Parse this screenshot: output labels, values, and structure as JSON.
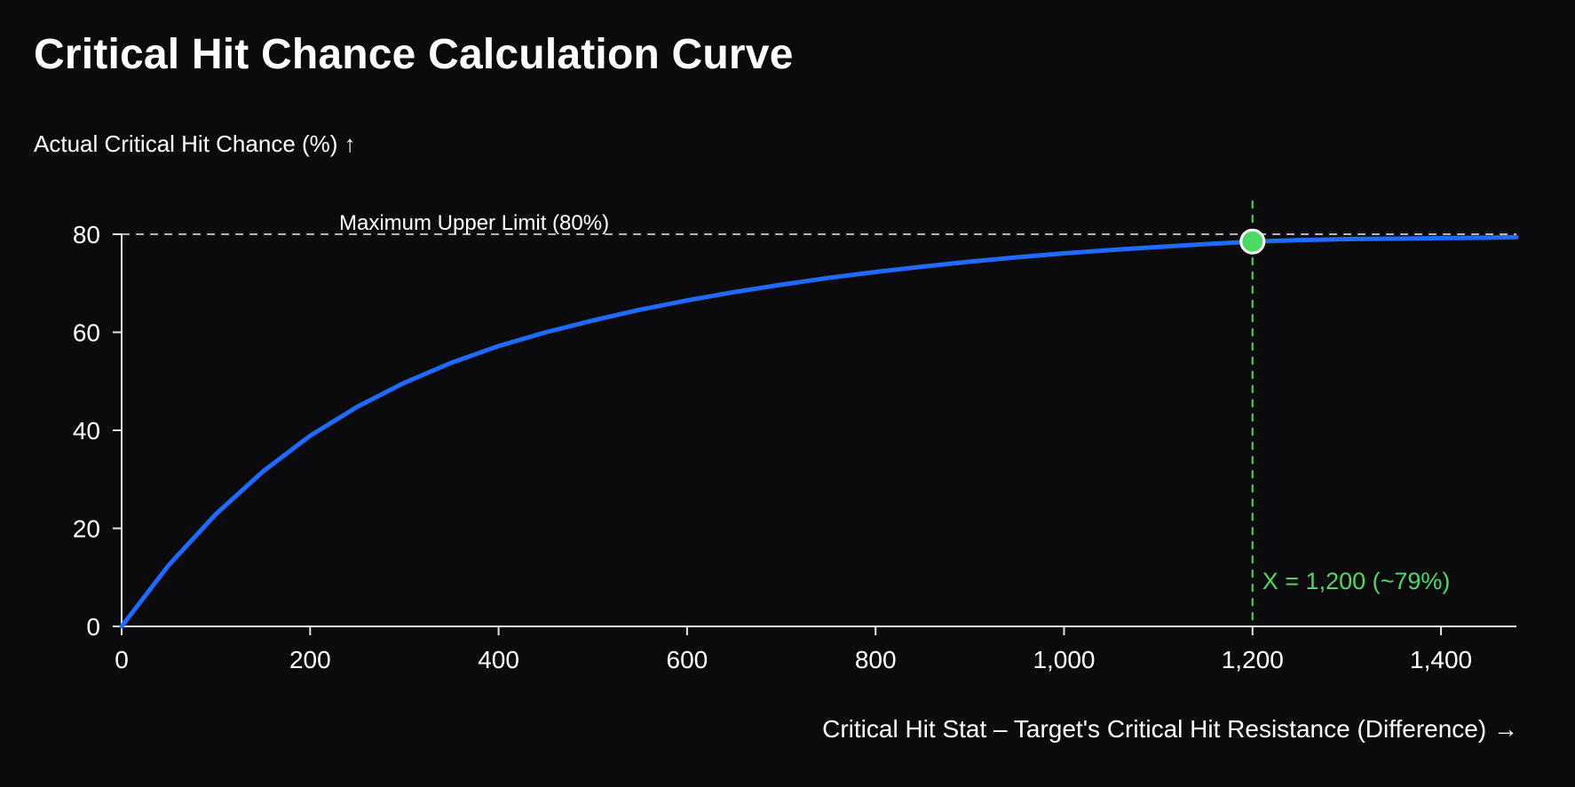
{
  "chart_data": {
    "type": "line",
    "title": "Critical Hit Chance Calculation Curve",
    "ylabel": "Actual Critical Hit Chance (%) ↑",
    "xlabel": "Critical Hit Stat – Target's Critical Hit Resistance (Difference) →",
    "xlim": [
      0,
      1480
    ],
    "ylim": [
      0,
      80
    ],
    "x_ticks": [
      0,
      200,
      400,
      600,
      800,
      1000,
      1200,
      1400
    ],
    "x_tick_labels": [
      "0",
      "200",
      "400",
      "600",
      "800",
      "1,000",
      "1,200",
      "1,400"
    ],
    "y_ticks": [
      0,
      20,
      40,
      60,
      80
    ],
    "y_tick_labels": [
      "0",
      "20",
      "40",
      "60",
      "80"
    ],
    "grid": false,
    "series": [
      {
        "color": "#1f6bff",
        "x": [
          0,
          50,
          100,
          150,
          200,
          250,
          300,
          350,
          400,
          450,
          500,
          550,
          600,
          650,
          700,
          750,
          800,
          850,
          900,
          950,
          1000,
          1050,
          1100,
          1150,
          1200,
          1250,
          1300,
          1350,
          1400,
          1450,
          1480
        ],
        "y": [
          0,
          12.5,
          22.9,
          31.6,
          38.9,
          44.8,
          49.7,
          53.8,
          57.2,
          60.0,
          62.4,
          64.6,
          66.5,
          68.2,
          69.7,
          71.1,
          72.3,
          73.4,
          74.4,
          75.3,
          76.1,
          76.8,
          77.4,
          78.0,
          78.5,
          78.8,
          79.0,
          79.1,
          79.2,
          79.3,
          79.4
        ]
      }
    ],
    "reference_line": {
      "y": 80,
      "label": "Maximum Upper Limit (80%)",
      "color": "#cccccc"
    },
    "marker": {
      "x": 1200,
      "y": 78.5,
      "label": "X = 1,200 (~79%)",
      "color": "#4cd964"
    }
  }
}
